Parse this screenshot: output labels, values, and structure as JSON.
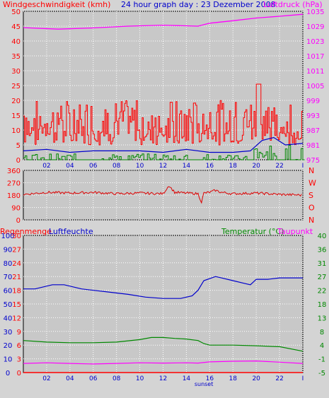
{
  "header": {
    "left_label": "Windgeschwindigkeit (kmh)",
    "title": "24 hour graph day : 23 Dezember 2008",
    "right_label": "Luftdruck (hPa)"
  },
  "legend2": {
    "rain": "Regenmenge",
    "humidity": "Luftfeuchte",
    "temperature": "Temperatur (°C)",
    "dewpoint": "Taupunkt"
  },
  "colors": {
    "wind": "#ff0000",
    "gust_avg": "#0000cc",
    "rain_green": "#008800",
    "pressure": "#ff00ff",
    "direction": "#dd0000",
    "humidity": "#0000cc",
    "temperature": "#008800",
    "dewpoint": "#ff00ff",
    "background": "#c8c8c8",
    "grid": "#ffffff"
  },
  "x_axis": {
    "ticks": [
      "02",
      "04",
      "06",
      "08",
      "10",
      "12",
      "14",
      "16",
      "18",
      "20",
      "22",
      "I"
    ],
    "event_label": "sunset"
  },
  "chart_data": [
    {
      "type": "line",
      "name": "wind_pressure",
      "left_axis": {
        "label": "Windgeschwindigkeit (kmh)",
        "ticks": [
          "0",
          "5",
          "10",
          "15",
          "20",
          "25",
          "30",
          "35",
          "40",
          "45",
          "50"
        ],
        "range": [
          0,
          50
        ]
      },
      "right_axis": {
        "label": "Luftdruck (hPa)",
        "ticks": [
          "975",
          "981",
          "987",
          "993",
          "999",
          "1005",
          "1011",
          "1017",
          "1023",
          "1029",
          "1035"
        ],
        "range": [
          975,
          1035
        ]
      },
      "x_range_hours": [
        0,
        24
      ],
      "pressure": {
        "x": [
          0,
          3,
          6,
          9,
          12,
          15,
          16,
          18,
          20,
          22,
          24
        ],
        "y": [
          1028.4,
          1027.8,
          1028.3,
          1029.0,
          1029.4,
          1029.0,
          1030.2,
          1031.2,
          1032.3,
          1033.0,
          1033.8
        ]
      },
      "wind_avg": {
        "x": [
          0,
          2,
          4,
          6,
          8,
          10,
          12,
          14,
          16,
          18,
          19.5,
          20.5,
          21.5,
          22.5,
          24
        ],
        "y": [
          3,
          3.5,
          2.5,
          3,
          3,
          3,
          2.5,
          3.5,
          2.5,
          2.5,
          3,
          6.5,
          7.5,
          5,
          5.5
        ]
      },
      "wind_gust_range": {
        "min": 5,
        "max": 26
      }
    },
    {
      "type": "line",
      "name": "wind_direction",
      "left_axis": {
        "ticks": [
          "360",
          "270",
          "180",
          "90",
          "0"
        ],
        "range": [
          0,
          360
        ]
      },
      "right_axis": {
        "ticks": [
          "N",
          "W",
          "S",
          "O",
          "N"
        ]
      },
      "direction": {
        "x": [
          0,
          2,
          4,
          6,
          8,
          10,
          12,
          12.5,
          13,
          14,
          15,
          15.3,
          15.5,
          16,
          16.5,
          17,
          18,
          20,
          22,
          24
        ],
        "y": [
          185,
          200,
          195,
          200,
          190,
          195,
          190,
          250,
          200,
          195,
          190,
          130,
          195,
          200,
          215,
          200,
          190,
          195,
          185,
          180
        ]
      }
    },
    {
      "type": "line",
      "name": "humidity_temperature",
      "left_axis_rain": {
        "label": "Regenmenge",
        "ticks": [
          "0",
          "3",
          "6",
          "9",
          "12",
          "15",
          "18",
          "21",
          "24",
          "27",
          "30"
        ],
        "range": [
          0,
          30
        ]
      },
      "left_axis_humidity": {
        "label": "Luftfeuchte",
        "ticks": [
          "0",
          "10",
          "20",
          "30",
          "40",
          "50",
          "60",
          "70",
          "80",
          "90",
          "100"
        ],
        "range": [
          0,
          100
        ]
      },
      "right_axis_temperature": {
        "label": "Temperatur (°C)",
        "ticks": [
          "-5",
          "-1",
          "4",
          "8",
          "13",
          "18",
          "22",
          "27",
          "31",
          "36",
          "40"
        ],
        "range": [
          -5,
          40
        ]
      },
      "humidity": {
        "x": [
          0,
          1,
          2.5,
          3.5,
          5,
          7,
          9,
          10.5,
          12,
          13.5,
          14.5,
          15,
          15.5,
          16.5,
          17,
          18,
          19,
          19.5,
          20,
          21,
          22,
          23,
          24
        ],
        "y": [
          61,
          61,
          64,
          64,
          61,
          59,
          57,
          55,
          54,
          54,
          56,
          60,
          67,
          70,
          69,
          67,
          65,
          64,
          68,
          68,
          69,
          69,
          69
        ]
      },
      "temperature": {
        "x": [
          0,
          2,
          4,
          6,
          8,
          10,
          11,
          12,
          13,
          14,
          15,
          15.5,
          16,
          17,
          18,
          20,
          22,
          24
        ],
        "y": [
          5.5,
          5.0,
          4.8,
          4.8,
          5.0,
          5.8,
          6.5,
          6.5,
          6.2,
          6.0,
          5.5,
          4.5,
          4.0,
          4.0,
          4.0,
          3.8,
          3.5,
          2.0
        ]
      },
      "dewpoint": {
        "x": [
          0,
          2,
          4,
          6,
          8,
          10,
          12,
          14,
          15,
          16,
          18,
          20,
          22,
          24
        ],
        "y": [
          -2.0,
          -1.8,
          -2.0,
          -2.2,
          -2.0,
          -1.8,
          -1.9,
          -1.8,
          -1.9,
          -1.5,
          -1.3,
          -1.2,
          -1.6,
          -2.0
        ]
      },
      "rain": {
        "x": [
          0,
          24
        ],
        "y": [
          0,
          0
        ]
      }
    }
  ]
}
